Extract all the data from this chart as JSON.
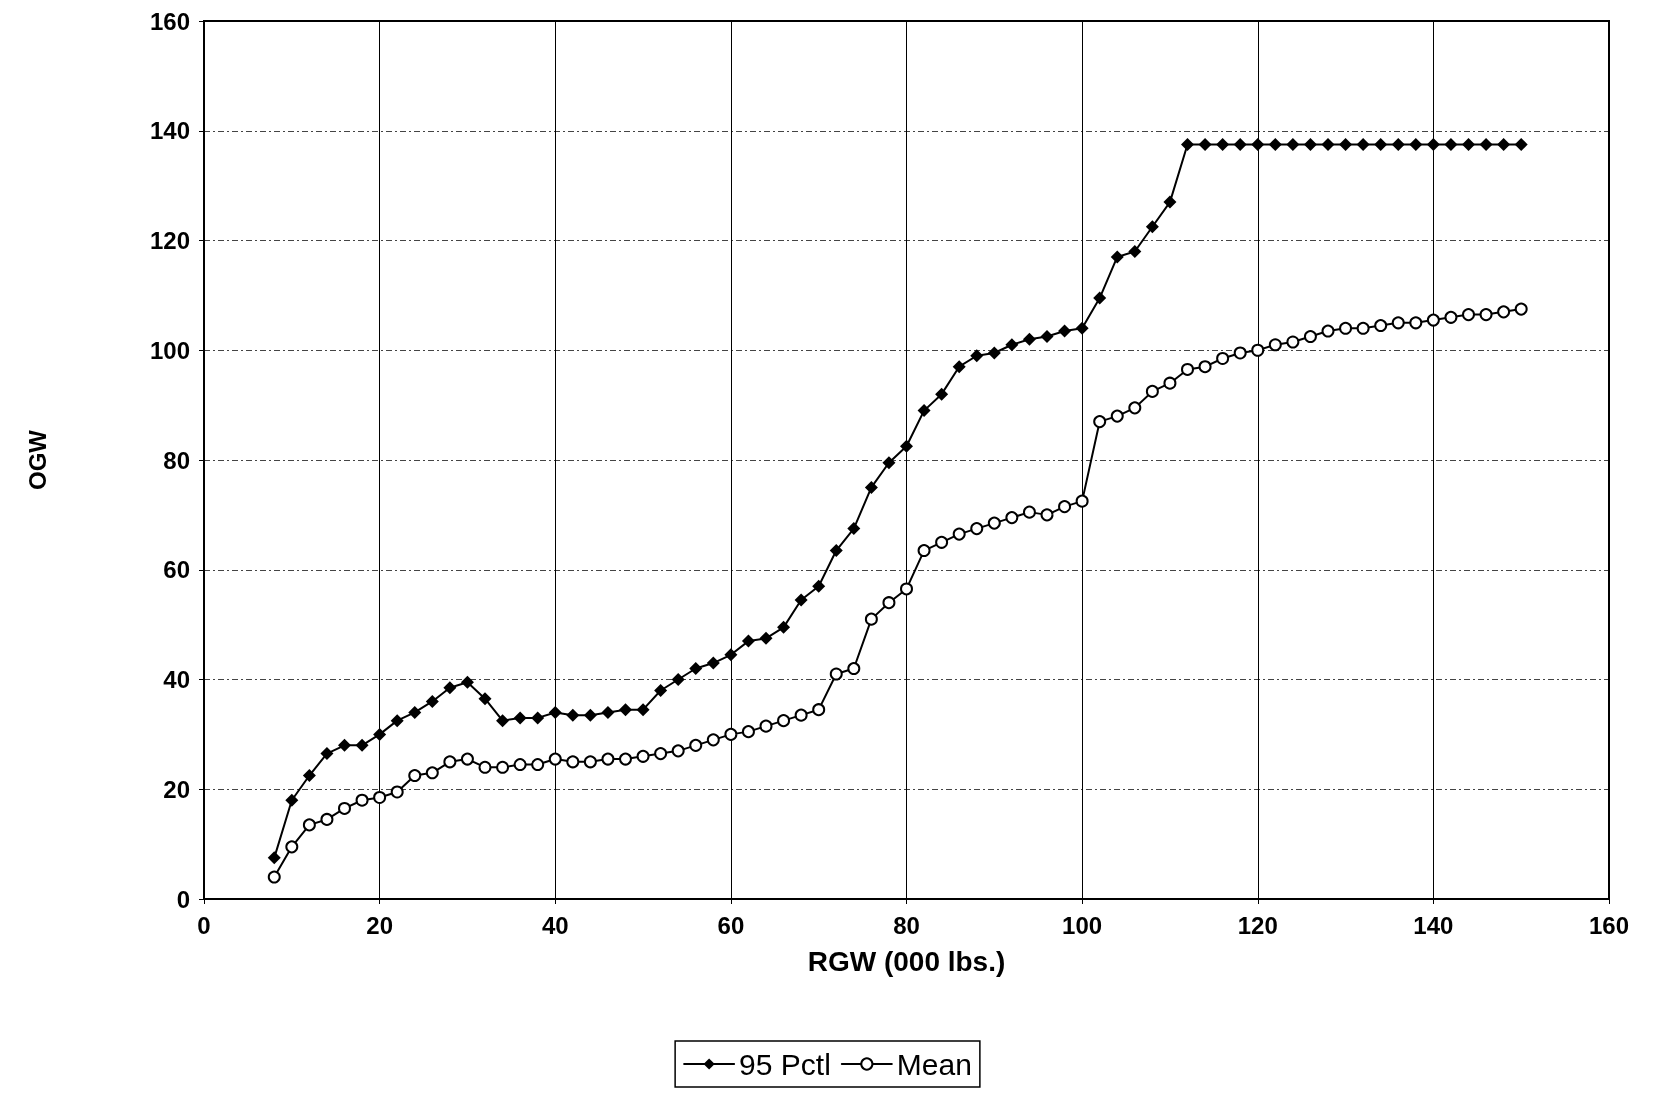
{
  "chart_data": {
    "type": "line",
    "xlabel": "RGW (000 lbs.)",
    "ylabel": "OGW",
    "x": [
      8,
      10,
      12,
      14,
      16,
      18,
      20,
      22,
      24,
      26,
      28,
      30,
      32,
      34,
      36,
      38,
      40,
      42,
      44,
      46,
      48,
      50,
      52,
      54,
      56,
      58,
      60,
      62,
      64,
      66,
      68,
      70,
      72,
      74,
      76,
      78,
      80,
      82,
      84,
      86,
      88,
      90,
      92,
      94,
      96,
      98,
      100,
      102,
      104,
      106,
      108,
      110,
      112,
      114,
      116,
      118,
      120,
      122,
      124,
      126,
      128,
      130,
      132,
      134,
      136,
      138,
      140,
      142,
      144,
      146,
      148,
      150
    ],
    "series": [
      {
        "name": "95 Pctl",
        "color": "#000000",
        "marker": "diamond",
        "values": [
          7.5,
          18,
          22.5,
          26.5,
          28,
          28,
          30,
          32.5,
          34,
          36,
          38.5,
          39.5,
          36.5,
          32.5,
          33,
          33,
          34,
          33.5,
          33.5,
          34,
          34.5,
          34.5,
          38,
          40,
          42,
          43,
          44.5,
          47,
          47.5,
          49.5,
          54.5,
          57,
          63.5,
          67.5,
          75,
          79.5,
          82.5,
          89,
          92,
          97,
          99,
          99.5,
          101,
          102,
          102.5,
          103.5,
          104,
          109.5,
          117,
          118,
          122.5,
          127,
          137.5,
          137.5,
          137.5,
          137.5,
          137.5,
          137.5,
          137.5,
          137.5,
          137.5,
          137.5,
          137.5,
          137.5,
          137.5,
          137.5,
          137.5,
          137.5,
          137.5,
          137.5,
          137.5,
          137.5
        ]
      },
      {
        "name": "Mean",
        "color": "#000000",
        "marker": "circle",
        "values": [
          4,
          9.5,
          13.5,
          14.5,
          16.5,
          18,
          18.5,
          19.5,
          22.5,
          23,
          25,
          25.5,
          24,
          24,
          24.5,
          24.5,
          25.5,
          25,
          25,
          25.5,
          25.5,
          26,
          26.5,
          27,
          28,
          29,
          30,
          30.5,
          31.5,
          32.5,
          33.5,
          34.5,
          41,
          42,
          51,
          54,
          56.5,
          63.5,
          65,
          66.5,
          67.5,
          68.5,
          69.5,
          70.5,
          70,
          71.5,
          72.5,
          87,
          88,
          89.5,
          92.5,
          94,
          96.5,
          97,
          98.5,
          99.5,
          100,
          101,
          101.5,
          102.5,
          103.5,
          104,
          104,
          104.5,
          105,
          105,
          105.5,
          106,
          106.5,
          106.5,
          107,
          107.5
        ]
      }
    ],
    "xlim": [
      0,
      160
    ],
    "xticks": [
      0,
      20,
      40,
      60,
      80,
      100,
      120,
      140,
      160
    ],
    "ylim": [
      0,
      160
    ],
    "yticks": [
      0,
      20,
      40,
      60,
      80,
      100,
      120,
      140,
      160
    ],
    "grid": true,
    "legend": "bottom",
    "line_style": "solid"
  }
}
